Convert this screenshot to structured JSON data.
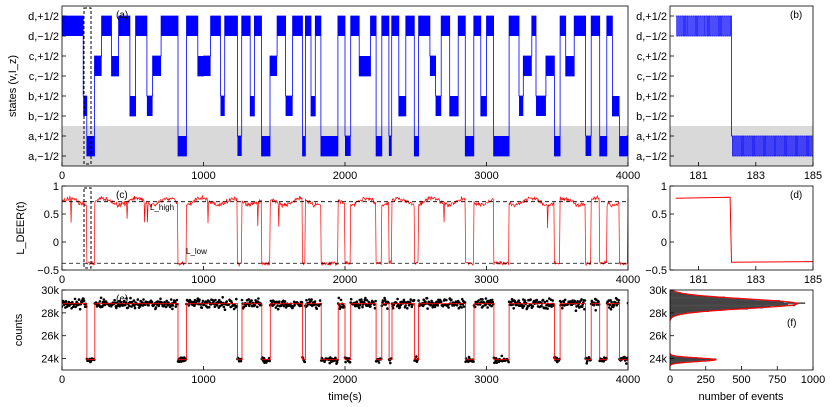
{
  "chart_data": [
    {
      "id": "a",
      "type": "line",
      "panel_label": "(a)",
      "ylabel": "states (v,I_z)",
      "xlim": [
        0,
        4000
      ],
      "x_ticks": [
        "0",
        "1000",
        "2000",
        "3000",
        "4000"
      ],
      "y_categories": [
        "a,−1/2",
        "a,+1/2",
        "b,−1/2",
        "b,+1/2",
        "c,−1/2",
        "c,+1/2",
        "d,−1/2",
        "d,+1/2"
      ],
      "shaded_band": [
        "a,−1/2",
        "a,+1/2"
      ],
      "colors": {
        "trace": "#0000ff",
        "band": "#d9d9d9"
      },
      "series": [
        {
          "segments": [
            [
              0,
              7
            ],
            [
              150,
              3
            ],
            [
              175,
              0
            ],
            [
              230,
              5
            ],
            [
              280,
              7
            ],
            [
              350,
              4
            ],
            [
              400,
              7
            ],
            [
              480,
              2
            ],
            [
              520,
              7
            ],
            [
              600,
              3
            ],
            [
              640,
              5
            ],
            [
              700,
              7
            ],
            [
              820,
              0
            ],
            [
              880,
              7
            ],
            [
              960,
              4
            ],
            [
              1000,
              5
            ],
            [
              1050,
              7
            ],
            [
              1120,
              3
            ],
            [
              1150,
              7
            ],
            [
              1240,
              1
            ],
            [
              1270,
              7
            ],
            [
              1330,
              2
            ],
            [
              1360,
              7
            ],
            [
              1410,
              0
            ],
            [
              1470,
              5
            ],
            [
              1520,
              7
            ],
            [
              1580,
              3
            ],
            [
              1630,
              7
            ],
            [
              1700,
              0
            ],
            [
              1720,
              7
            ],
            [
              1760,
              2
            ],
            [
              1790,
              7
            ],
            [
              1830,
              0
            ],
            [
              1950,
              7
            ],
            [
              2000,
              1
            ],
            [
              2040,
              7
            ],
            [
              2100,
              4
            ],
            [
              2180,
              7
            ],
            [
              2220,
              0
            ],
            [
              2260,
              7
            ],
            [
              2310,
              1
            ],
            [
              2330,
              7
            ],
            [
              2380,
              2
            ],
            [
              2430,
              7
            ],
            [
              2490,
              0
            ],
            [
              2520,
              7
            ],
            [
              2600,
              5
            ],
            [
              2640,
              3
            ],
            [
              2680,
              7
            ],
            [
              2740,
              2
            ],
            [
              2800,
              7
            ],
            [
              2850,
              0
            ],
            [
              2910,
              7
            ],
            [
              2960,
              2
            ],
            [
              3000,
              7
            ],
            [
              3050,
              0
            ],
            [
              3160,
              7
            ],
            [
              3230,
              3
            ],
            [
              3260,
              5
            ],
            [
              3320,
              7
            ],
            [
              3350,
              3
            ],
            [
              3420,
              5
            ],
            [
              3480,
              0
            ],
            [
              3520,
              7
            ],
            [
              3560,
              4
            ],
            [
              3620,
              7
            ],
            [
              3700,
              1
            ],
            [
              3740,
              7
            ],
            [
              3800,
              0
            ],
            [
              3850,
              7
            ],
            [
              3890,
              2
            ],
            [
              3940,
              0
            ],
            [
              3990,
              1
            ]
          ]
        }
      ]
    },
    {
      "id": "b",
      "type": "line",
      "panel_label": "(b)",
      "xlim": [
        180,
        185
      ],
      "x_ticks": [
        "181",
        "183",
        "185"
      ],
      "y_categories": [
        "a,−1/2",
        "a,+1/2",
        "b,−1/2",
        "b,+1/2",
        "c,−1/2",
        "c,+1/2",
        "d,−1/2",
        "d,+1/2"
      ],
      "shaded_band": [
        "a,−1/2",
        "a,+1/2"
      ],
      "colors": {
        "trace": "#0000ff",
        "band": "#d9d9d9"
      },
      "series": [
        {
          "segments": [
            [
              180.2,
              "d"
            ],
            [
              182.15,
              "a"
            ],
            [
              185,
              "a"
            ]
          ]
        }
      ]
    },
    {
      "id": "c",
      "type": "line",
      "panel_label": "(c)",
      "ylabel": "L_DEER(t)",
      "xlim": [
        0,
        4000
      ],
      "ylim": [
        -0.5,
        1
      ],
      "x_ticks": [
        "0",
        "1000",
        "2000",
        "3000",
        "4000"
      ],
      "y_ticks": [
        "−0.5",
        "0",
        "0.5",
        "1"
      ],
      "annotations": [
        "L_high",
        "L_low"
      ],
      "reference_lines": {
        "L_high": 0.72,
        "L_low": -0.38
      },
      "colors": {
        "trace": "#ff0000"
      },
      "series": [
        {
          "low_intervals": [
            [
              175,
              230
            ],
            [
              820,
              880
            ],
            [
              1240,
              1270
            ],
            [
              1410,
              1470
            ],
            [
              1700,
              1720
            ],
            [
              1830,
              1950
            ],
            [
              2000,
              2040
            ],
            [
              2220,
              2260
            ],
            [
              2310,
              2330
            ],
            [
              2490,
              2520
            ],
            [
              2850,
              2910
            ],
            [
              3050,
              3160
            ],
            [
              3480,
              3520
            ],
            [
              3700,
              3740
            ],
            [
              3800,
              3850
            ],
            [
              3940,
              4000
            ]
          ]
        }
      ]
    },
    {
      "id": "d",
      "type": "line",
      "panel_label": "(d)",
      "xlim": [
        180,
        185
      ],
      "ylim": [
        -0.5,
        1
      ],
      "x_ticks": [
        "181",
        "183",
        "185"
      ],
      "y_ticks": [
        "−0.5",
        "0",
        "0.5",
        "1"
      ],
      "colors": {
        "trace": "#ff0000"
      },
      "series": [
        {
          "x": [
            180.2,
            182.1,
            182.15,
            185
          ],
          "y": [
            0.78,
            0.8,
            -0.36,
            -0.35
          ]
        }
      ]
    },
    {
      "id": "e",
      "type": "scatter",
      "panel_label": "(e)",
      "ylabel": "counts",
      "xlabel": "time(s)",
      "xlim": [
        0,
        4000
      ],
      "ylim": [
        23000,
        30000
      ],
      "x_ticks": [
        "0",
        "1000",
        "2000",
        "3000",
        "4000"
      ],
      "y_ticks": [
        "24k",
        "26k",
        "28k",
        "30k"
      ],
      "levels": {
        "high": 28800,
        "low": 23900
      },
      "colors": {
        "points": "#000000",
        "fit": "#ff0000"
      }
    },
    {
      "id": "f",
      "type": "bar",
      "orientation": "horizontal",
      "panel_label": "(f)",
      "xlabel": "number of events",
      "xlim": [
        0,
        1000
      ],
      "ylim": [
        23000,
        30000
      ],
      "x_ticks": [
        "0",
        "250",
        "500",
        "750",
        "1000"
      ],
      "y_ticks": [
        "24k",
        "26k",
        "28k",
        "30k"
      ],
      "colors": {
        "bars": "#555555",
        "fit": "#ff0000"
      },
      "series": [
        {
          "component": "high",
          "center": 28800,
          "sigma": 420,
          "peak": 890
        },
        {
          "component": "low",
          "center": 23900,
          "sigma": 160,
          "peak": 320
        }
      ]
    }
  ]
}
